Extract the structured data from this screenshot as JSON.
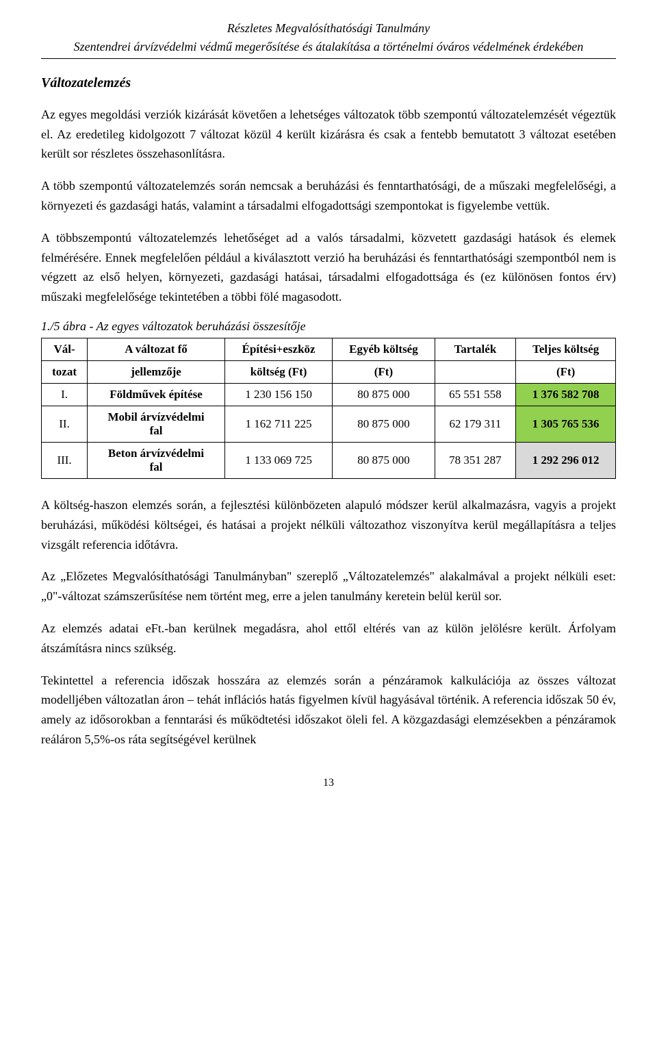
{
  "header": {
    "line1": "Részletes Megvalósíthatósági Tanulmány",
    "line2": "Szentendrei árvízvédelmi védmű megerősítése és átalakítása a történelmi óváros védelmének érdekében"
  },
  "section_title": "Változatelemzés",
  "paragraphs": {
    "p1": "Az egyes megoldási verziók kizárását követően a lehetséges változatok több szempontú változatelemzését végeztük el. Az eredetileg kidolgozott 7 változat közül 4 került kizárásra és csak a fentebb bemutatott 3 változat esetében került sor részletes összehasonlításra.",
    "p2": "A több szempontú változatelemzés során nemcsak a beruházási és fenntarthatósági, de a műszaki megfelelőségi, a környezeti és gazdasági hatás, valamint a társadalmi elfogadottsági szempontokat is figyelembe vettük.",
    "p3": "A többszempontú változatelemzés lehetőséget ad a valós társadalmi, közvetett gazdasági hatások és elemek felmérésére. Ennek megfelelően például a kiválasztott verzió ha beruházási és fenntarthatósági szempontból nem is végzett az első helyen, környezeti, gazdasági hatásai, társadalmi elfogadottsága és (ez különösen fontos érv) műszaki megfelelősége tekintetében a többi fölé magasodott.",
    "p4": "A költség-haszon elemzés során, a fejlesztési különbözeten alapuló módszer kerül alkalmazásra, vagyis a projekt beruházási, működési költségei, és hatásai a projekt nélküli változathoz viszonyítva kerül megállapításra a teljes vizsgált referencia időtávra.",
    "p5": "Az „Előzetes Megvalósíthatósági Tanulmányban\" szereplő „Változatelemzés\" alakalmával a projekt nélküli eset: „0\"-változat számszerűsítése nem történt meg, erre a jelen tanulmány keretein belül kerül sor.",
    "p6": "Az elemzés adatai eFt.-ban kerülnek megadásra, ahol ettől eltérés van az külön jelölésre került. Árfolyam átszámításra nincs szükség.",
    "p7": "Tekintettel a referencia időszak hosszára az elemzés során a pénzáramok kalkulációja az összes változat modelljében változatlan áron – tehát inflációs hatás figyelmen kívül hagyásával történik. A referencia időszak 50 év, amely az idősorokban a fenntarási és működtetési időszakot öleli fel. A közgazdasági elemzésekben a pénzáramok reáláron 5,5%-os ráta segítségével kerülnek"
  },
  "table": {
    "caption": "1./5 ábra - Az egyes változatok beruházási összesítője",
    "headers": {
      "c1a": "Vál-",
      "c1b": "tozat",
      "c2a": "A változat fő",
      "c2b": "jellemzője",
      "c3a": "Építési+eszköz",
      "c3b": "költség (Ft)",
      "c4a": "Egyéb költség",
      "c4b": "(Ft)",
      "c5a": "Tartalék",
      "c5b": "",
      "c6a": "Teljes költség",
      "c6b": "(Ft)"
    },
    "rows": [
      {
        "id": "I.",
        "name_l1": "Földművek építése",
        "name_l2": "",
        "build": "1 230 156 150",
        "other": "80 875 000",
        "reserve": "65 551 558",
        "total": "1 376 582 708",
        "total_class": "hl-green"
      },
      {
        "id": "II.",
        "name_l1": "Mobil árvízvédelmi",
        "name_l2": "fal",
        "build": "1 162 711 225",
        "other": "80 875 000",
        "reserve": "62 179 311",
        "total": "1 305 765 536",
        "total_class": "hl-green"
      },
      {
        "id": "III.",
        "name_l1": "Beton árvízvédelmi",
        "name_l2": "fal",
        "build": "1 133 069 725",
        "other": "80 875 000",
        "reserve": "78 351 287",
        "total": "1 292 296 012",
        "total_class": "hl-grey"
      }
    ],
    "colors": {
      "green": "#92d050",
      "grey": "#d9d9d9"
    }
  },
  "page_number": "13"
}
